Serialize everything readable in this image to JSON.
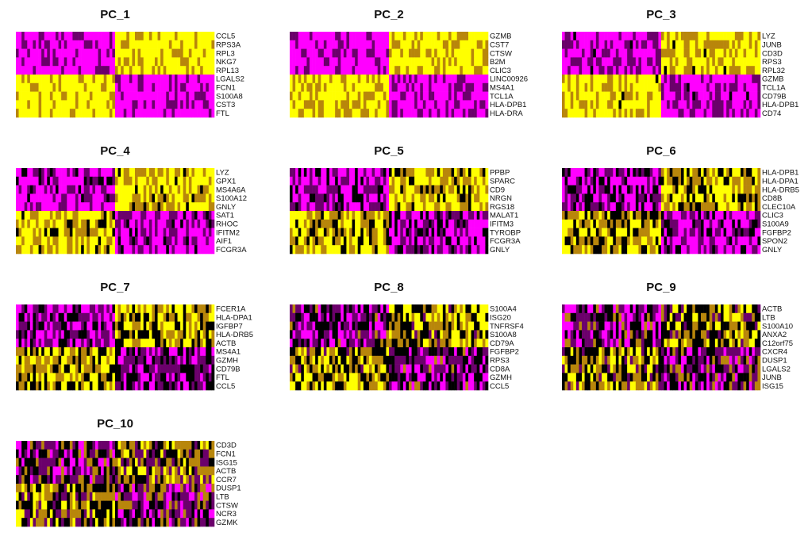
{
  "colors": {
    "high": "#FFFF00",
    "mid": "#000000",
    "low": "#FF00FF",
    "mid_high": "#B8860B",
    "mid_low": "#6B006B"
  },
  "chart_data": [
    {
      "type": "heatmap",
      "title": "PC_1",
      "genes": [
        "CCL5",
        "RPS3A",
        "RPL3",
        "NKG7",
        "RPL13",
        "LGALS2",
        "FCN1",
        "S100A8",
        "CST3",
        "FTL"
      ],
      "row_pattern": [
        1,
        1,
        1,
        1,
        1,
        -1,
        -1,
        -1,
        -1,
        -1
      ],
      "split": 0.5
    },
    {
      "type": "heatmap",
      "title": "PC_2",
      "genes": [
        "GZMB",
        "CST7",
        "CTSW",
        "B2M",
        "CLIC3",
        "LINC00926",
        "MS4A1",
        "TCL1A",
        "HLA-DPB1",
        "HLA-DRA"
      ],
      "row_pattern": [
        1,
        1,
        1,
        1,
        1,
        -1,
        -1,
        -1,
        -1,
        -1
      ],
      "split": 0.5
    },
    {
      "type": "heatmap",
      "title": "PC_3",
      "genes": [
        "LYZ",
        "JUNB",
        "CD3D",
        "RPS3",
        "RPL32",
        "GZMB",
        "TCL1A",
        "CD79B",
        "HLA-DPB1",
        "CD74"
      ],
      "row_pattern": [
        1,
        1,
        1,
        1,
        1,
        -1,
        -1,
        -1,
        -1,
        -1
      ],
      "split": 0.5
    },
    {
      "type": "heatmap",
      "title": "PC_4",
      "genes": [
        "LYZ",
        "GPX1",
        "MS4A6A",
        "S100A12",
        "GNLY",
        "SAT1",
        "RHOC",
        "IFITM2",
        "AIF1",
        "FCGR3A"
      ],
      "row_pattern": [
        1,
        1,
        1,
        1,
        1,
        -1,
        -1,
        -1,
        -1,
        -1
      ],
      "split": 0.5
    },
    {
      "type": "heatmap",
      "title": "PC_5",
      "genes": [
        "PPBP",
        "SPARC",
        "CD9",
        "NRGN",
        "RGS18",
        "MALAT1",
        "IFITM3",
        "TYROBP",
        "FCGR3A",
        "GNLY"
      ],
      "row_pattern": [
        1,
        1,
        1,
        1,
        1,
        -1,
        -1,
        -1,
        -1,
        -1
      ],
      "split": 0.5
    },
    {
      "type": "heatmap",
      "title": "PC_6",
      "genes": [
        "HLA-DPB1",
        "HLA-DPA1",
        "HLA-DRB5",
        "CD8B",
        "CLEC10A",
        "CLIC3",
        "S100A9",
        "FGFBP2",
        "SPON2",
        "GNLY"
      ],
      "row_pattern": [
        1,
        1,
        1,
        1,
        1,
        -1,
        -1,
        -1,
        -1,
        -1
      ],
      "split": 0.5
    },
    {
      "type": "heatmap",
      "title": "PC_7",
      "genes": [
        "FCER1A",
        "HLA-DPA1",
        "IGFBP7",
        "HLA-DRB5",
        "ACTB",
        "MS4A1",
        "GZMH",
        "CD79B",
        "FTL",
        "CCL5"
      ],
      "row_pattern": [
        1,
        1,
        1,
        1,
        1,
        -1,
        -1,
        -1,
        -1,
        -1
      ],
      "split": 0.5
    },
    {
      "type": "heatmap",
      "title": "PC_8",
      "genes": [
        "S100A4",
        "ISG20",
        "TNFRSF4",
        "S100A8",
        "CD79A",
        "FGFBP2",
        "RPS3",
        "CD8A",
        "GZMH",
        "CCL5"
      ],
      "row_pattern": [
        1,
        1,
        1,
        1,
        1,
        -1,
        -1,
        -1,
        -1,
        -1
      ],
      "split": 0.5
    },
    {
      "type": "heatmap",
      "title": "PC_9",
      "genes": [
        "ACTB",
        "LTB",
        "S100A10",
        "ANXA2",
        "C12orf75",
        "CXCR4",
        "DUSP1",
        "LGALS2",
        "JUNB",
        "ISG15"
      ],
      "row_pattern": [
        1,
        1,
        1,
        1,
        1,
        -1,
        -1,
        -1,
        -1,
        -1
      ],
      "split": 0.5
    },
    {
      "type": "heatmap",
      "title": "PC_10",
      "genes": [
        "CD3D",
        "FCN1",
        "ISG15",
        "ACTB",
        "CCR7",
        "DUSP1",
        "LTB",
        "CTSW",
        "NCR3",
        "GZMK"
      ],
      "row_pattern": [
        1,
        1,
        1,
        1,
        1,
        -1,
        -1,
        -1,
        -1,
        -1
      ],
      "split": 0.5
    }
  ]
}
